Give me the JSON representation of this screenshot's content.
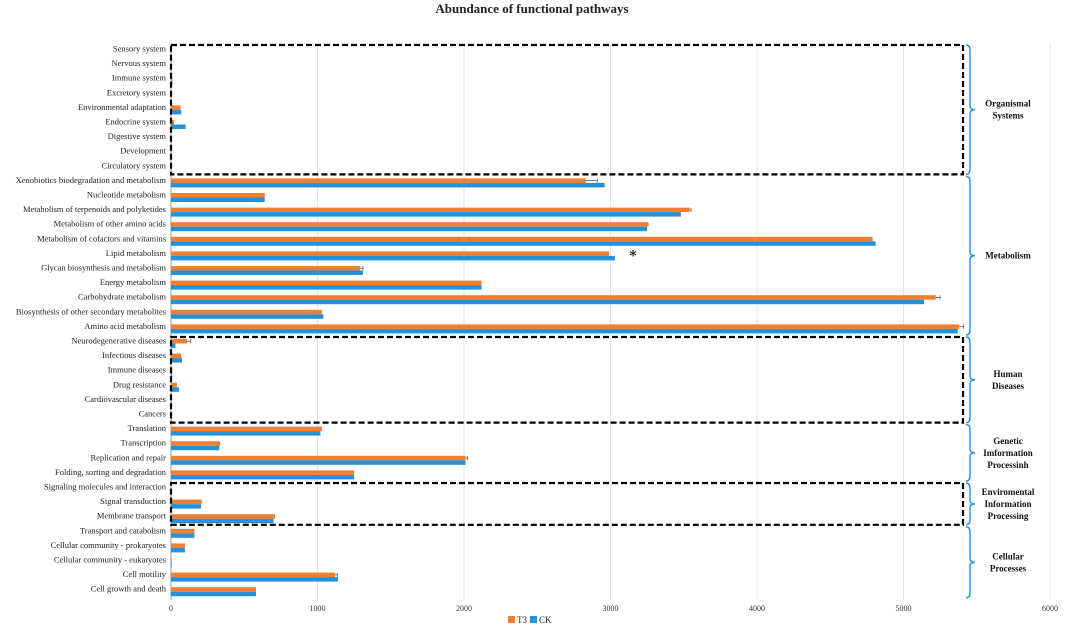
{
  "chart_data": {
    "type": "bar",
    "orientation": "horizontal",
    "title": "Abundance of functional pathways",
    "xlim": [
      0,
      6000
    ],
    "xticks": [
      "0",
      "1000",
      "2000",
      "3000",
      "4000",
      "5000",
      "6000"
    ],
    "xgrid": true,
    "legend_position": "bottom-center",
    "categories": [
      "Sensory system",
      "Nervous system",
      "Immune system",
      "Excretory system",
      "Environmental adaptation",
      "Endocrine system",
      "Digestive system",
      "Development",
      "Circulatory system",
      "Xenobiotics biodegradation and metabolism",
      "Nucleotide metabolism",
      "Metabolism of terpenoids and polyketides",
      "Metabolism of other amino acids",
      "Metabolism of cofactors and vitamins",
      "Lipid metabolism",
      "Glycan biosynthesis and metabolism",
      "Energy metabolism",
      "Carbohydrate metabolism",
      "Biosynthesis of other secondary metabolites",
      "Amino acid metabolism",
      "Neurodegenerative diseases",
      "Infectious diseases",
      "Immune diseases",
      "Drug resistance",
      "Cardiovascular diseases",
      "Cancers",
      "Translation",
      "Transcription",
      "Replication and repair",
      "Folding, sorting and degradation",
      "Signaling molecules and interaction",
      "Signal transduction",
      "Membrane transport",
      "Transport and catabolism",
      "Cellular community - prokaryotes",
      "Cellular community - eukaryotes",
      "Cell motility",
      "Cell growth and death"
    ],
    "series": [
      {
        "name": "T3",
        "color": "#f07f31",
        "values": [
          5,
          4,
          10,
          3,
          65,
          20,
          5,
          3,
          3,
          2830,
          640,
          3540,
          3260,
          4790,
          2990,
          1290,
          2120,
          5220,
          1030,
          5380,
          110,
          70,
          8,
          40,
          5,
          5,
          1030,
          335,
          2010,
          1250,
          3,
          210,
          710,
          160,
          95,
          5,
          1120,
          580
        ],
        "errors": [
          0,
          0,
          0,
          0,
          0,
          0,
          0,
          0,
          0,
          80,
          0,
          10,
          0,
          0,
          0,
          20,
          0,
          30,
          0,
          30,
          25,
          0,
          0,
          0,
          0,
          0,
          0,
          0,
          15,
          0,
          0,
          0,
          0,
          0,
          0,
          0,
          15,
          0
        ]
      },
      {
        "name": "CK",
        "color": "#2592d8",
        "values": [
          5,
          4,
          10,
          3,
          70,
          100,
          5,
          3,
          3,
          2960,
          640,
          3480,
          3250,
          4810,
          3030,
          1310,
          2120,
          5140,
          1040,
          5370,
          30,
          75,
          8,
          55,
          5,
          5,
          1020,
          330,
          2010,
          1250,
          3,
          205,
          700,
          160,
          95,
          5,
          1140,
          580
        ],
        "errors": [
          0,
          0,
          0,
          0,
          0,
          0,
          0,
          0,
          0,
          0,
          0,
          0,
          0,
          0,
          0,
          0,
          0,
          0,
          0,
          0,
          0,
          0,
          0,
          0,
          0,
          0,
          0,
          0,
          0,
          0,
          0,
          0,
          0,
          0,
          0,
          0,
          0,
          0
        ]
      }
    ],
    "groups": [
      {
        "label": [
          "Organismal",
          "Systems"
        ],
        "from": 0,
        "to": 8,
        "dashed": true
      },
      {
        "label": [
          "Metabolism"
        ],
        "from": 9,
        "to": 19,
        "dashed": false
      },
      {
        "label": [
          "Human",
          "Diseases"
        ],
        "from": 20,
        "to": 25,
        "dashed": true
      },
      {
        "label": [
          "Genetic",
          "Imformation",
          "Processinh"
        ],
        "from": 26,
        "to": 29,
        "dashed": false
      },
      {
        "label": [
          "Enviromental",
          "Information",
          "Processing"
        ],
        "from": 30,
        "to": 32,
        "dashed": true
      },
      {
        "label": [
          "Cellular",
          "Processes"
        ],
        "from": 33,
        "to": 37,
        "dashed": false
      }
    ],
    "annotations": [
      {
        "text": "*",
        "category": "Lipid metabolism"
      }
    ]
  }
}
